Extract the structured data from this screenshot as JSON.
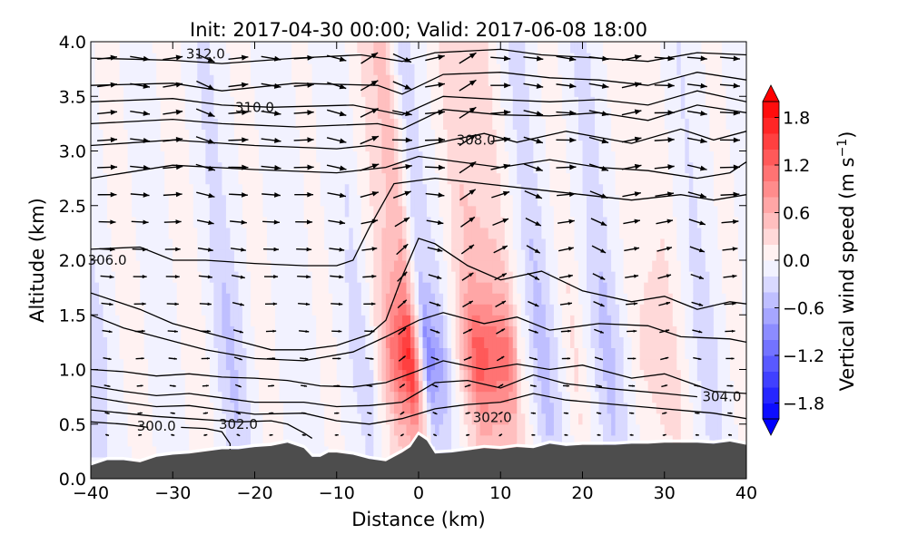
{
  "chart_data": {
    "type": "heatmap",
    "title": "Init: 2017-04-30 00:00; Valid: 2017-06-08 18:00",
    "xlabel": "Distance (km)",
    "ylabel": "Altitude (km)",
    "xlim": [
      -40,
      40
    ],
    "ylim": [
      0.0,
      4.0
    ],
    "x_ticks": [
      "−40",
      "−30",
      "−20",
      "−10",
      "0",
      "10",
      "20",
      "30",
      "40"
    ],
    "x_tick_values": [
      -40,
      -30,
      -20,
      -10,
      0,
      10,
      20,
      30,
      40
    ],
    "y_ticks": [
      "0.0",
      "0.5",
      "1.0",
      "1.5",
      "2.0",
      "2.5",
      "3.0",
      "3.5",
      "4.0"
    ],
    "y_tick_values": [
      0.0,
      0.5,
      1.0,
      1.5,
      2.0,
      2.5,
      3.0,
      3.5,
      4.0
    ],
    "colorbar": {
      "label": "Vertical wind speed (m s",
      "label_sup": "−1",
      "label_close": ")",
      "ticks": [
        "1.8",
        "1.2",
        "0.6",
        "0.0",
        "−0.6",
        "−1.2",
        "−1.8"
      ],
      "tick_values": [
        1.8,
        1.2,
        0.6,
        0.0,
        -0.6,
        -1.2,
        -1.8
      ],
      "range": [
        -2.0,
        2.0
      ],
      "extend": "both",
      "colormap": "bwr",
      "low_color": "#0000ff",
      "mid_color": "#ffffff",
      "high_color": "#ff0000"
    },
    "field": {
      "x": [
        -40,
        -36,
        -32,
        -28,
        -24,
        -20,
        -16,
        -12,
        -8,
        -4,
        -2,
        0,
        2,
        6,
        10,
        14,
        18,
        22,
        26,
        30,
        34,
        38,
        40
      ],
      "column_w_m_s": [
        -0.3,
        0.15,
        -0.2,
        0.2,
        -0.5,
        0.15,
        -0.2,
        0.1,
        -0.35,
        0.6,
        0.9,
        -0.5,
        -0.3,
        0.7,
        0.55,
        -0.6,
        0.25,
        -0.55,
        0.2,
        0.3,
        -0.4,
        0.15,
        -0.1
      ]
    },
    "contours": {
      "variable": "potential temperature (K)",
      "labels": [
        {
          "text": "312.0",
          "x": -26,
          "y": 3.89
        },
        {
          "text": "310.0",
          "x": -20,
          "y": 3.4
        },
        {
          "text": "308.0",
          "x": 7,
          "y": 3.1
        },
        {
          "text": "306.0",
          "x": -38,
          "y": 2.0
        },
        {
          "text": "300.0",
          "x": -32,
          "y": 0.48
        },
        {
          "text": "302.0",
          "x": -22,
          "y": 0.5
        },
        {
          "text": "302.0",
          "x": 9,
          "y": 0.56
        },
        {
          "text": "304.0",
          "x": 37,
          "y": 0.75
        }
      ],
      "levels": [
        {
          "value": 312.0,
          "points": [
            [
              -40,
              3.85
            ],
            [
              -30,
              3.83
            ],
            [
              -24,
              3.8
            ],
            [
              -15,
              3.85
            ],
            [
              -7,
              3.88
            ],
            [
              -2,
              3.82
            ],
            [
              2,
              3.9
            ],
            [
              10,
              3.93
            ],
            [
              15,
              3.88
            ],
            [
              22,
              3.85
            ],
            [
              28,
              3.82
            ],
            [
              34,
              3.9
            ],
            [
              40,
              3.88
            ]
          ]
        },
        {
          "value": 311.5,
          "points": [
            [
              -40,
              3.6
            ],
            [
              -30,
              3.62
            ],
            [
              -24,
              3.55
            ],
            [
              -15,
              3.62
            ],
            [
              -5,
              3.6
            ],
            [
              -2,
              3.52
            ],
            [
              3,
              3.7
            ],
            [
              10,
              3.72
            ],
            [
              16,
              3.67
            ],
            [
              22,
              3.65
            ],
            [
              28,
              3.6
            ],
            [
              34,
              3.72
            ],
            [
              40,
              3.65
            ]
          ]
        },
        {
          "value": 310.5,
          "points": [
            [
              -40,
              3.45
            ],
            [
              -30,
              3.48
            ],
            [
              -24,
              3.42
            ],
            [
              -18,
              3.4
            ],
            [
              -8,
              3.42
            ],
            [
              -2,
              3.33
            ],
            [
              3,
              3.5
            ],
            [
              10,
              3.47
            ],
            [
              16,
              3.45
            ],
            [
              22,
              3.47
            ],
            [
              28,
              3.42
            ],
            [
              34,
              3.55
            ],
            [
              40,
              3.45
            ]
          ]
        },
        {
          "value": 310.0,
          "points": [
            [
              -40,
              3.25
            ],
            [
              -30,
              3.29
            ],
            [
              -24,
              3.25
            ],
            [
              -15,
              3.22
            ],
            [
              -5,
              3.25
            ],
            [
              -2,
              3.2
            ],
            [
              3,
              3.38
            ],
            [
              10,
              3.33
            ],
            [
              16,
              3.32
            ],
            [
              22,
              3.35
            ],
            [
              28,
              3.28
            ],
            [
              34,
              3.42
            ],
            [
              40,
              3.35
            ]
          ]
        },
        {
          "value": 308.0,
          "points": [
            [
              -40,
              3.05
            ],
            [
              -30,
              3.1
            ],
            [
              -20,
              3.05
            ],
            [
              -10,
              3.02
            ],
            [
              -6,
              3.05
            ],
            [
              -2,
              3.0
            ],
            [
              4,
              3.1
            ],
            [
              8,
              3.16
            ],
            [
              12,
              3.08
            ],
            [
              18,
              3.18
            ],
            [
              26,
              3.07
            ],
            [
              32,
              3.2
            ],
            [
              36,
              3.1
            ],
            [
              40,
              3.18
            ]
          ]
        },
        {
          "value": 307.0,
          "points": [
            [
              -40,
              2.75
            ],
            [
              -30,
              2.87
            ],
            [
              -20,
              2.83
            ],
            [
              -10,
              2.8
            ],
            [
              -4,
              2.85
            ],
            [
              0,
              2.95
            ],
            [
              5,
              2.9
            ],
            [
              10,
              2.85
            ],
            [
              16,
              2.92
            ],
            [
              22,
              2.85
            ],
            [
              28,
              2.82
            ],
            [
              34,
              2.75
            ],
            [
              38,
              2.8
            ],
            [
              40,
              2.9
            ]
          ]
        },
        {
          "value": 306.0,
          "points": [
            [
              -40,
              2.1
            ],
            [
              -34,
              2.12
            ],
            [
              -30,
              2.0
            ],
            [
              -26,
              2.0
            ],
            [
              -20,
              1.97
            ],
            [
              -14,
              1.95
            ],
            [
              -10,
              1.95
            ],
            [
              -8,
              2.0
            ],
            [
              -6,
              2.3
            ],
            [
              -3,
              2.7
            ],
            [
              2,
              2.75
            ],
            [
              8,
              2.7
            ],
            [
              14,
              2.65
            ],
            [
              20,
              2.6
            ],
            [
              26,
              2.55
            ],
            [
              32,
              2.6
            ],
            [
              36,
              2.55
            ],
            [
              40,
              2.6
            ]
          ]
        },
        {
          "value": 305.5,
          "points": [
            [
              -40,
              1.7
            ],
            [
              -34,
              1.55
            ],
            [
              -30,
              1.42
            ],
            [
              -24,
              1.3
            ],
            [
              -18,
              1.18
            ],
            [
              -14,
              1.18
            ],
            [
              -10,
              1.22
            ],
            [
              -6,
              1.32
            ],
            [
              -4,
              1.45
            ],
            [
              -2,
              1.85
            ],
            [
              0,
              2.2
            ],
            [
              2,
              2.15
            ],
            [
              6,
              1.95
            ],
            [
              10,
              1.82
            ],
            [
              15,
              1.9
            ],
            [
              20,
              1.72
            ],
            [
              26,
              1.62
            ],
            [
              30,
              1.67
            ],
            [
              34,
              1.55
            ],
            [
              38,
              1.62
            ],
            [
              40,
              1.6
            ]
          ]
        },
        {
          "value": 305.0,
          "points": [
            [
              -40,
              1.5
            ],
            [
              -36,
              1.38
            ],
            [
              -32,
              1.3
            ],
            [
              -26,
              1.18
            ],
            [
              -20,
              1.1
            ],
            [
              -14,
              1.08
            ],
            [
              -8,
              1.16
            ],
            [
              -4,
              1.3
            ],
            [
              0,
              1.45
            ],
            [
              3,
              1.52
            ],
            [
              8,
              1.42
            ],
            [
              12,
              1.48
            ],
            [
              16,
              1.36
            ],
            [
              22,
              1.42
            ],
            [
              28,
              1.4
            ],
            [
              32,
              1.3
            ],
            [
              38,
              1.28
            ],
            [
              40,
              1.25
            ]
          ]
        },
        {
          "value": 304.0,
          "points": [
            [
              -40,
              1.0
            ],
            [
              -36,
              0.98
            ],
            [
              -32,
              0.94
            ],
            [
              -28,
              0.96
            ],
            [
              -24,
              0.93
            ],
            [
              -20,
              0.92
            ],
            [
              -16,
              0.9
            ],
            [
              -12,
              0.85
            ],
            [
              -8,
              0.84
            ],
            [
              -4,
              0.88
            ],
            [
              0,
              0.99
            ],
            [
              3,
              1.08
            ],
            [
              8,
              1.0
            ],
            [
              12,
              1.05
            ],
            [
              16,
              1.0
            ],
            [
              20,
              1.04
            ],
            [
              26,
              0.92
            ],
            [
              30,
              0.96
            ],
            [
              36,
              0.8
            ],
            [
              40,
              0.78
            ]
          ]
        },
        {
          "value": 303.0,
          "points": [
            [
              -40,
              0.85
            ],
            [
              -36,
              0.8
            ],
            [
              -32,
              0.76
            ],
            [
              -28,
              0.78
            ],
            [
              -24,
              0.74
            ],
            [
              -20,
              0.7
            ],
            [
              -14,
              0.7
            ],
            [
              -10,
              0.66
            ],
            [
              -6,
              0.67
            ],
            [
              -2,
              0.7
            ],
            [
              2,
              0.88
            ],
            [
              6,
              0.9
            ],
            [
              10,
              0.83
            ],
            [
              14,
              0.95
            ],
            [
              18,
              0.87
            ],
            [
              24,
              0.82
            ],
            [
              30,
              0.78
            ],
            [
              34,
              0.75
            ]
          ]
        },
        {
          "value": 302.5,
          "points": [
            [
              -40,
              0.75
            ],
            [
              -36,
              0.7
            ],
            [
              -32,
              0.66
            ],
            [
              -28,
              0.67
            ],
            [
              -24,
              0.63
            ],
            [
              -20,
              0.59
            ],
            [
              -14,
              0.6
            ],
            [
              -10,
              0.53
            ],
            [
              -6,
              0.5
            ],
            [
              -2,
              0.55
            ],
            [
              2,
              0.64
            ],
            [
              6,
              0.68
            ],
            [
              10,
              0.7
            ],
            [
              14,
              0.78
            ],
            [
              18,
              0.72
            ],
            [
              24,
              0.68
            ],
            [
              30,
              0.64
            ],
            [
              36,
              0.6
            ],
            [
              40,
              0.55
            ]
          ]
        },
        {
          "value": 302.0,
          "points": [
            [
              -40,
              0.63
            ],
            [
              -36,
              0.6
            ],
            [
              -32,
              0.57
            ],
            [
              -28,
              0.55
            ],
            [
              -24,
              0.53
            ],
            [
              -22,
              0.52
            ],
            [
              -18,
              0.53
            ],
            [
              -16,
              0.5
            ],
            [
              -14,
              0.42
            ],
            [
              -13,
              0.37
            ]
          ]
        },
        {
          "value": 301.0,
          "points": [
            [
              -40,
              0.52
            ],
            [
              -36,
              0.5
            ],
            [
              -33,
              0.47
            ]
          ]
        },
        {
          "value": 300.5,
          "points": [
            [
              -29,
              0.47
            ],
            [
              -26,
              0.46
            ],
            [
              -24,
              0.43
            ],
            [
              -23,
              0.32
            ],
            [
              -23,
              0.25
            ]
          ]
        }
      ]
    },
    "terrain": {
      "color": "#4d4d4d",
      "x": [
        -40,
        -38,
        -36,
        -34,
        -32,
        -30,
        -28,
        -26,
        -24,
        -22,
        -20,
        -18,
        -16,
        -14,
        -13,
        -12,
        -11,
        -10,
        -8,
        -6,
        -4,
        -2,
        -1,
        0,
        1,
        2,
        4,
        6,
        8,
        10,
        12,
        14,
        16,
        18,
        20,
        22,
        24,
        26,
        28,
        30,
        32,
        34,
        36,
        38,
        40
      ],
      "height_km": [
        0.12,
        0.17,
        0.17,
        0.15,
        0.2,
        0.22,
        0.23,
        0.25,
        0.27,
        0.27,
        0.29,
        0.3,
        0.33,
        0.28,
        0.2,
        0.2,
        0.24,
        0.24,
        0.22,
        0.18,
        0.16,
        0.24,
        0.29,
        0.4,
        0.35,
        0.23,
        0.24,
        0.26,
        0.28,
        0.27,
        0.29,
        0.28,
        0.32,
        0.3,
        0.31,
        0.31,
        0.31,
        0.32,
        0.32,
        0.33,
        0.33,
        0.33,
        0.32,
        0.34,
        0.31
      ]
    },
    "wind_vectors": {
      "description": "quiver arrows of along-section wind",
      "rows_km": [
        3.85,
        3.6,
        3.35,
        3.1,
        2.85,
        2.6,
        2.35,
        2.1,
        1.85,
        1.6,
        1.35,
        1.1,
        0.85,
        0.6,
        0.4
      ],
      "cols_km": [
        -38,
        -34,
        -30,
        -26,
        -22,
        -18,
        -14,
        -10,
        -6,
        -2,
        2,
        6,
        10,
        14,
        18,
        22,
        26,
        30,
        34,
        38
      ]
    }
  }
}
